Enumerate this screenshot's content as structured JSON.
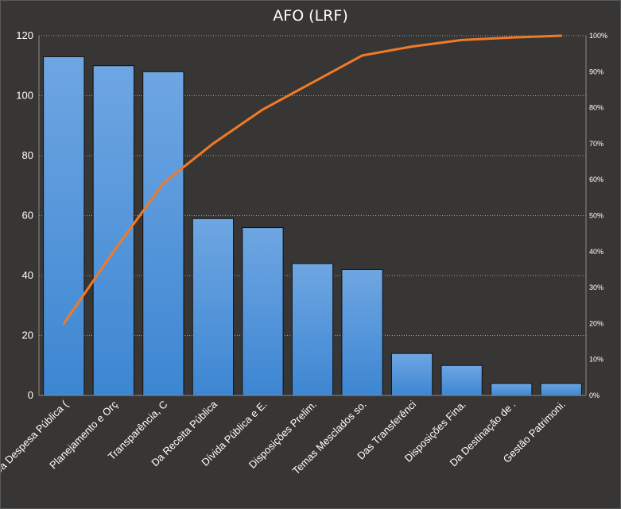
{
  "chart_data": {
    "type": "bar",
    "title": "AFO (LRF)",
    "categories": [
      "Da Despesa Pública (",
      "Planejamento e Orç",
      "Transparência, C",
      "Da Receita Pública",
      "Dívida Pública e E.",
      "Disposições Prelim.",
      "Temas Mesclados so.",
      "Das Transferênci",
      "Disposições Fina.",
      "Da Destinação de .",
      "Gestão Patrimoni."
    ],
    "series": [
      {
        "type": "bar",
        "values": [
          113,
          110,
          108,
          59,
          56,
          44,
          42,
          14,
          10,
          4,
          4
        ],
        "axis": "left"
      },
      {
        "type": "line",
        "values": [
          20,
          40,
          59,
          70,
          79.5,
          87,
          94.5,
          97,
          98.8,
          99.5,
          100
        ],
        "axis": "right"
      }
    ],
    "y_left": {
      "min": 0,
      "max": 120,
      "ticks": [
        0,
        20,
        40,
        60,
        80,
        100,
        120
      ]
    },
    "y_right": {
      "min": 0,
      "max": 100,
      "ticks": [
        "0%",
        "10%",
        "20%",
        "30%",
        "40%",
        "50%",
        "60%",
        "70%",
        "80%",
        "90%",
        "100%"
      ]
    },
    "grid": true,
    "colors": {
      "background": "#383634",
      "bar_top": "#6ea6e2",
      "bar_bottom": "#3d86d2",
      "bar_stroke": "#111111",
      "line": "#f07a28",
      "grid": "#9a9a9a",
      "text": "#ffffff"
    }
  }
}
